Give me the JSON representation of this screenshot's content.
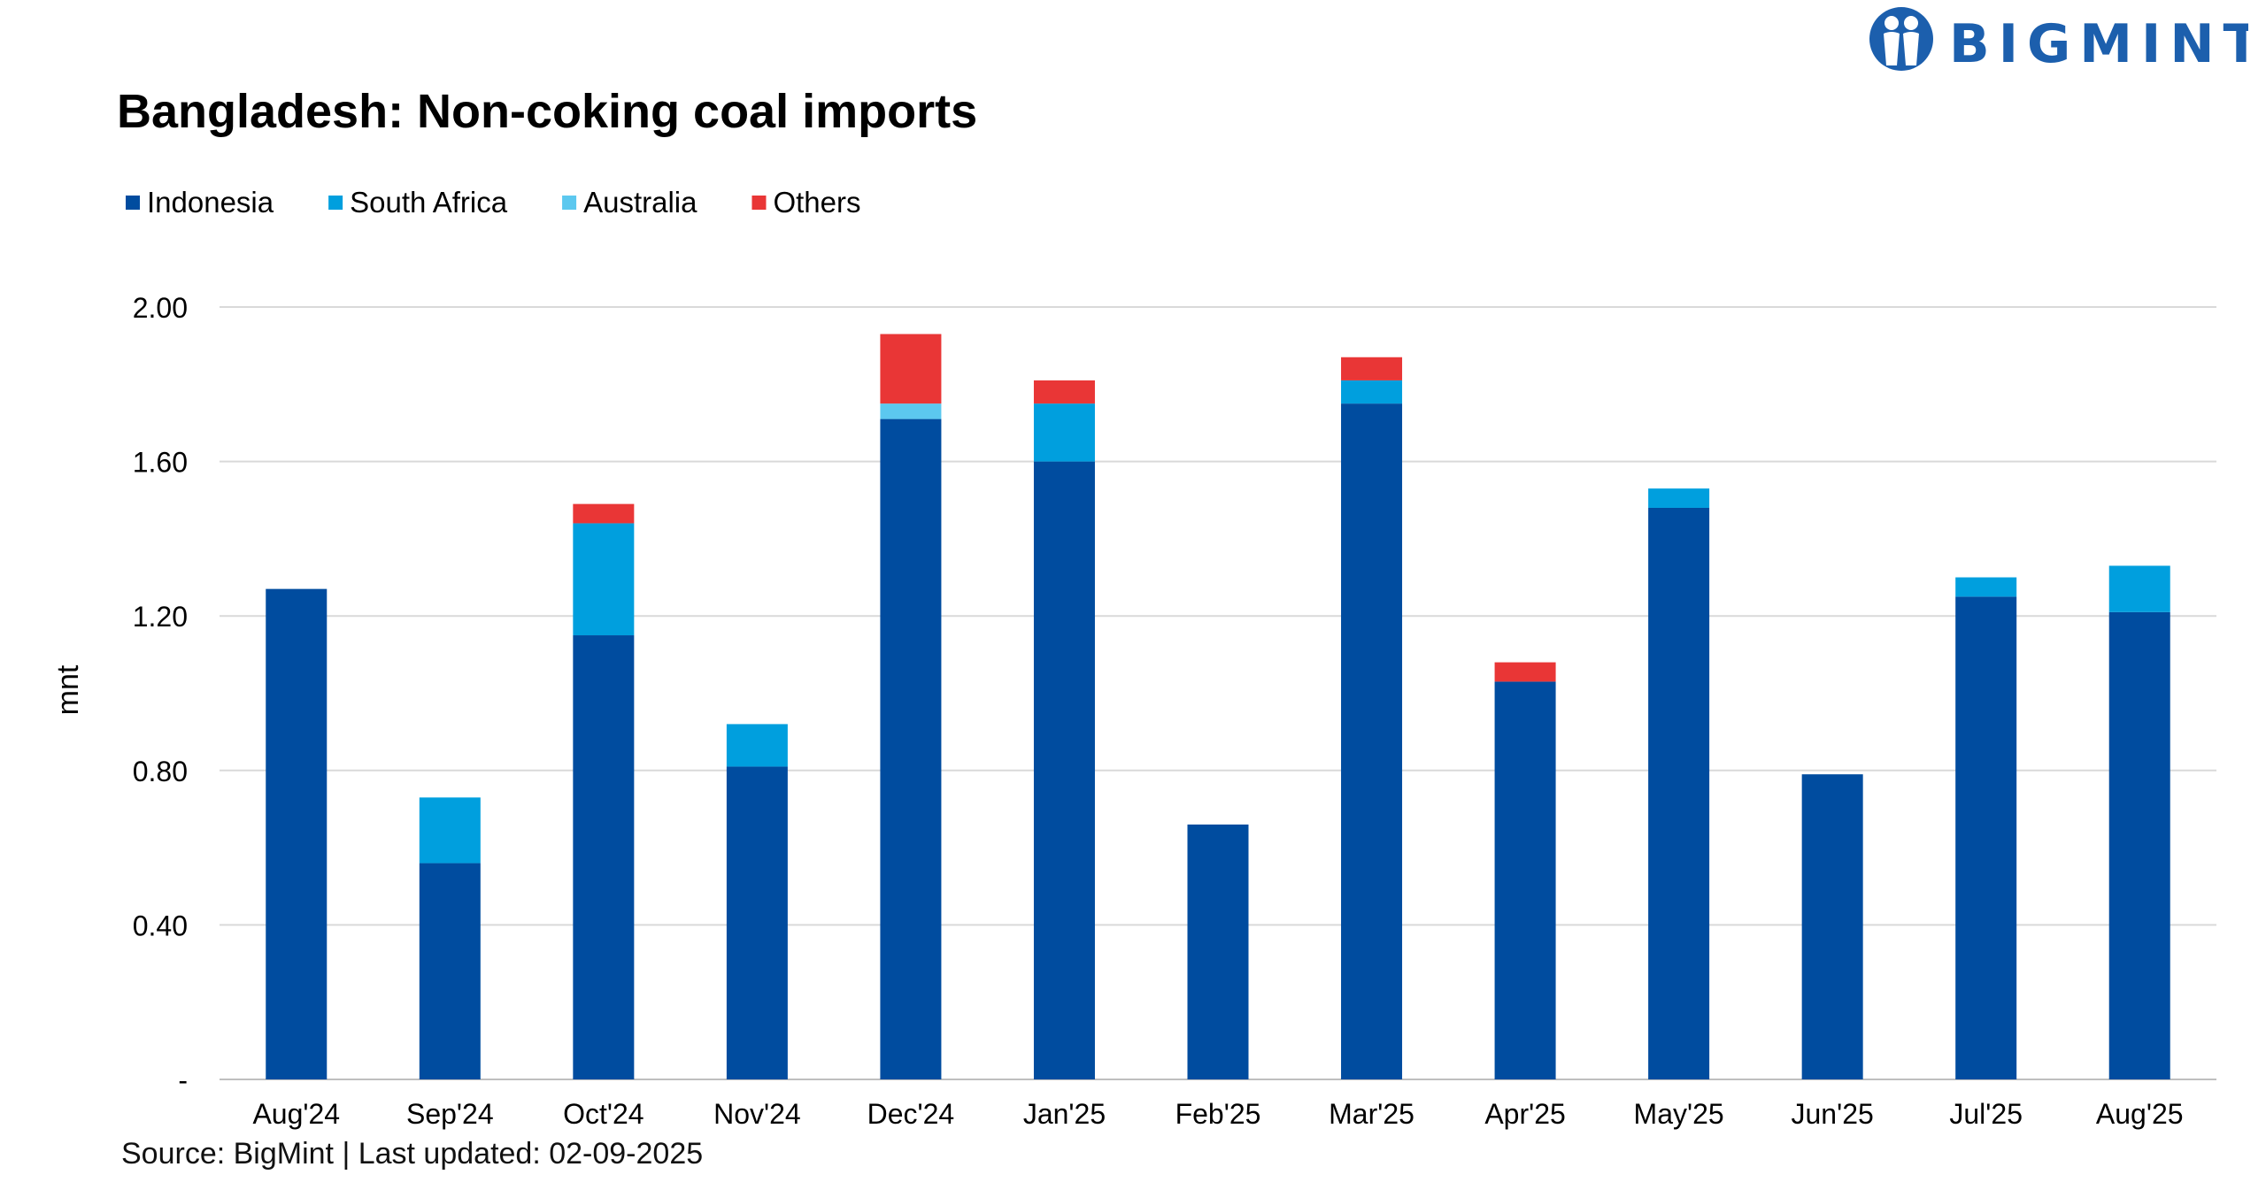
{
  "brand": {
    "name": "BIGMINT",
    "color": "#1c5fad"
  },
  "chart_data": {
    "type": "bar",
    "stacked": true,
    "title": "Bangladesh: Non-coking coal imports",
    "ylabel": "mnt",
    "xlabel": "",
    "ylim": [
      0,
      2.0
    ],
    "yticks": [
      {
        "value": 0,
        "label": "-"
      },
      {
        "value": 0.4,
        "label": "0.40"
      },
      {
        "value": 0.8,
        "label": "0.80"
      },
      {
        "value": 1.2,
        "label": "1.20"
      },
      {
        "value": 1.6,
        "label": "1.60"
      },
      {
        "value": 2.0,
        "label": "2.00"
      }
    ],
    "grid": true,
    "legend_position": "top-left",
    "categories": [
      "Aug'24",
      "Sep'24",
      "Oct'24",
      "Nov'24",
      "Dec'24",
      "Jan'25",
      "Feb'25",
      "Mar'25",
      "Apr'25",
      "May'25",
      "Jun'25",
      "Jul'25",
      "Aug'25"
    ],
    "series": [
      {
        "name": "Indonesia",
        "color": "#004c9f",
        "values": [
          1.27,
          0.56,
          1.15,
          0.81,
          1.71,
          1.6,
          0.66,
          1.75,
          1.03,
          1.48,
          0.79,
          1.25,
          1.21
        ]
      },
      {
        "name": "South Africa",
        "color": "#009fde",
        "values": [
          0,
          0.17,
          0.29,
          0.11,
          0,
          0.15,
          0,
          0.06,
          0,
          0.05,
          0,
          0.05,
          0.12
        ]
      },
      {
        "name": "Australia",
        "color": "#5cc8ef",
        "values": [
          0,
          0,
          0,
          0,
          0.04,
          0,
          0,
          0,
          0,
          0,
          0,
          0,
          0
        ]
      },
      {
        "name": "Others",
        "color": "#e93636",
        "values": [
          0,
          0,
          0.05,
          0,
          0.18,
          0.06,
          0,
          0.06,
          0.05,
          0,
          0,
          0,
          0
        ]
      }
    ],
    "source": "Source: BigMint | Last updated: 02-09-2025"
  }
}
